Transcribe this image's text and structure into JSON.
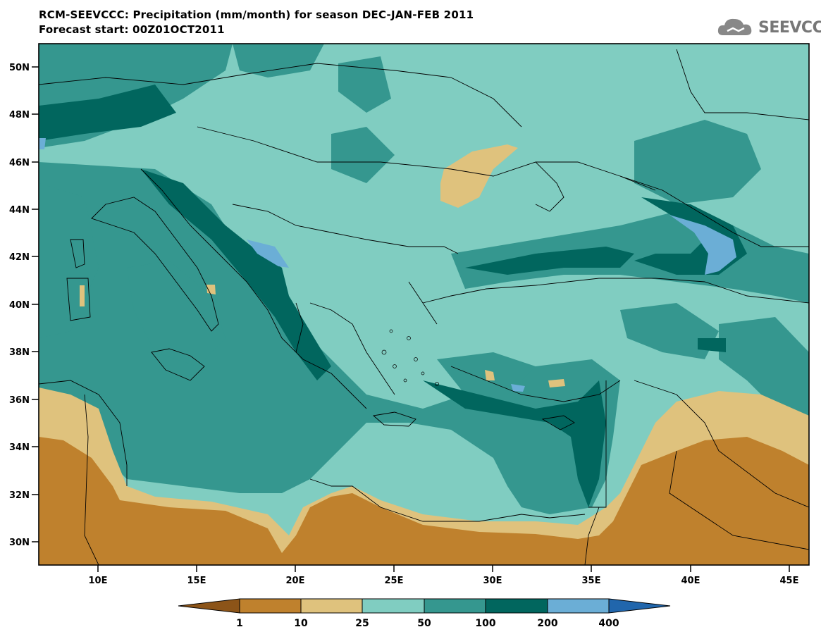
{
  "header": {
    "title": "RCM-SEEVCCC: Precipitation (mm/month) for season DEC-JAN-FEB 2011",
    "subtitle": "Forecast start: 00Z01OCT2011"
  },
  "logo": {
    "text": "SEEVCCC",
    "icon": "cloud-icon"
  },
  "map": {
    "type": "filled-contour-map",
    "lon_range": [
      7,
      46
    ],
    "lat_range": [
      29,
      51
    ],
    "lat_ticks": [
      "50N",
      "48N",
      "46N",
      "44N",
      "42N",
      "40N",
      "38N",
      "36N",
      "34N",
      "32N",
      "30N"
    ],
    "lon_ticks": [
      "10E",
      "15E",
      "20E",
      "25E",
      "30E",
      "35E",
      "40E",
      "45E"
    ]
  },
  "colorbar": {
    "labels": [
      "1",
      "10",
      "25",
      "50",
      "100",
      "200",
      "400"
    ],
    "colors": {
      "below_1": "#8c5418",
      "1_10": "#bf812d",
      "10_25": "#dfc27d",
      "25_50": "#80cdc1",
      "50_100": "#35978f",
      "100_200": "#01665e",
      "200_400": "#6baed6",
      "above_400": "#2166ac"
    }
  }
}
